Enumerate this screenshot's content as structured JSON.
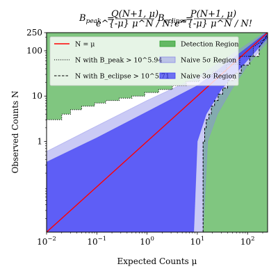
{
  "chart_data": {
    "type": "area",
    "title_left": "B",
    "title_left_sub": "peak",
    "title_left_num": "Q(N+1, μ)",
    "title_left_den": "e^{-μ} μ^N / N!",
    "title_right": "B",
    "title_right_sub": "eclipse",
    "title_right_num": "P(N+1, μ)",
    "title_right_den": "e^{-μ} μ^N / N!",
    "xlabel": "Expected Counts μ",
    "ylabel": "Observed Counts N",
    "x_scale": "log",
    "y_scale": "log",
    "xlim": [
      0.01,
      250
    ],
    "ylim": [
      0.01,
      250
    ],
    "x_ticks": [
      {
        "value": 0.01,
        "label": "10",
        "exp": "−2"
      },
      {
        "value": 0.1,
        "label": "10",
        "exp": "−1"
      },
      {
        "value": 1,
        "label": "10",
        "exp": "0"
      },
      {
        "value": 10,
        "label": "10",
        "exp": "1"
      },
      {
        "value": 100,
        "label": "10",
        "exp": "2"
      }
    ],
    "y_ticks": [
      {
        "value": 1,
        "label": "1"
      },
      {
        "value": 10,
        "label": "10"
      },
      {
        "value": 100,
        "label": "100"
      },
      {
        "value": 250,
        "label": "250"
      }
    ],
    "legend": [
      {
        "label": "N = μ",
        "style": "line",
        "color": "#ff0000"
      },
      {
        "label": "N with B_peak > 10^5.94",
        "style": "dotted",
        "color": "#000000"
      },
      {
        "label": "N with B_eclipse > 10^5.71",
        "style": "dashed",
        "color": "#000000"
      },
      {
        "label": "Detection Region",
        "style": "patch",
        "color": "#2ca02c"
      },
      {
        "label": "Naive 5σ Region",
        "style": "patch",
        "color": "#8a8ae8"
      },
      {
        "label": "Naive 3σ Region",
        "style": "patch",
        "color": "#3a3af5"
      }
    ],
    "legend_placement": "top-left",
    "series": [
      {
        "name": "N = μ",
        "x": [
          0.01,
          250
        ],
        "y": [
          0.01,
          250
        ]
      },
      {
        "name": "N with B_peak > 10^5.94",
        "x": [
          0.01,
          0.02,
          0.02,
          0.03,
          0.03,
          0.05,
          0.05,
          0.09,
          0.09,
          0.15,
          0.15,
          0.28,
          0.28,
          0.5,
          0.5,
          0.9,
          0.9,
          1.7,
          1.7,
          3.2,
          3.2,
          6,
          6,
          11,
          11,
          20,
          20,
          38,
          38,
          70,
          70,
          130,
          130,
          250
        ],
        "y": [
          3,
          3,
          4,
          4,
          5,
          5,
          6,
          6,
          7,
          7,
          8,
          8,
          9,
          9,
          10,
          10,
          12,
          12,
          14,
          14,
          17,
          17,
          21,
          21,
          27,
          27,
          35,
          35,
          50,
          50,
          75,
          75,
          120,
          200
        ]
      },
      {
        "name": "N with B_eclipse > 10^5.71",
        "x": [
          13,
          13,
          14,
          14,
          15,
          15,
          17,
          17,
          19,
          19,
          22,
          22,
          26,
          26,
          32,
          32,
          40,
          40,
          55,
          55,
          75,
          75,
          110,
          110,
          170,
          170,
          250
        ],
        "y": [
          0.01,
          1,
          1,
          2,
          2,
          3,
          3,
          4,
          4,
          6,
          6,
          8,
          8,
          11,
          11,
          15,
          15,
          22,
          22,
          32,
          32,
          48,
          48,
          75,
          75,
          120,
          230
        ]
      }
    ],
    "regions": {
      "naive_5sigma_upper": {
        "x": [
          0.01,
          0.1,
          1,
          10,
          100,
          250
        ],
        "y": [
          0.6,
          2.2,
          8,
          26,
          140,
          280
        ]
      },
      "naive_5sigma_lower": {
        "x": [
          13,
          16,
          25,
          50,
          100,
          250
        ],
        "y": [
          0.01,
          1,
          4,
          15,
          48,
          160
        ]
      },
      "naive_3sigma_upper": {
        "x": [
          0.01,
          0.1,
          1,
          10,
          100,
          250
        ],
        "y": [
          0.35,
          1.2,
          4.5,
          17,
          120,
          260
        ]
      },
      "naive_3sigma_lower": {
        "x": [
          8.5,
          10,
          15,
          30,
          100,
          250
        ],
        "y": [
          0.01,
          1,
          4,
          14,
          62,
          190
        ]
      }
    }
  }
}
